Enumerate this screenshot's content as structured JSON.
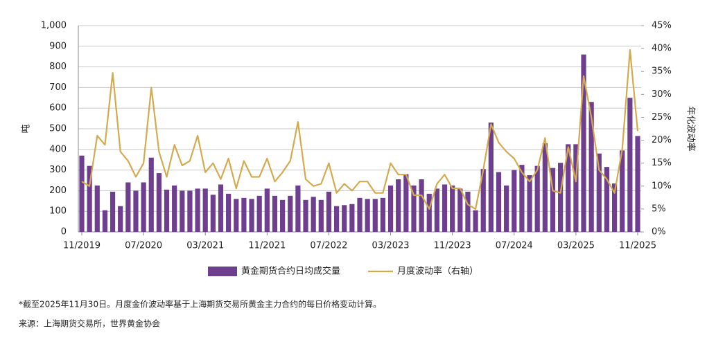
{
  "chart_data": {
    "type": "bar_line",
    "categories": [
      "11/2019",
      null,
      null,
      null,
      null,
      null,
      null,
      null,
      "07/2020",
      null,
      null,
      null,
      null,
      null,
      null,
      null,
      "03/2021",
      null,
      null,
      null,
      null,
      null,
      null,
      null,
      "11/2021",
      null,
      null,
      null,
      null,
      null,
      null,
      null,
      "07/2022",
      null,
      null,
      null,
      null,
      null,
      null,
      null,
      "03/2023",
      null,
      null,
      null,
      null,
      null,
      null,
      null,
      "11/2023",
      null,
      null,
      null,
      null,
      null,
      null,
      null,
      "07/2024",
      null,
      null,
      null,
      null,
      null,
      null,
      null,
      "03/2025",
      null,
      null,
      null,
      null,
      null,
      null,
      null,
      "11/2025"
    ],
    "series": [
      {
        "name": "黄金期货合约日均成交量",
        "type": "bar",
        "color": "#6e3f8e",
        "values": [
          370,
          320,
          225,
          105,
          195,
          125,
          240,
          200,
          240,
          360,
          285,
          205,
          225,
          200,
          200,
          210,
          210,
          180,
          230,
          185,
          160,
          165,
          160,
          175,
          210,
          175,
          155,
          175,
          225,
          155,
          170,
          155,
          195,
          125,
          130,
          135,
          165,
          160,
          160,
          165,
          225,
          255,
          280,
          225,
          255,
          185,
          210,
          230,
          225,
          210,
          195,
          105,
          305,
          530,
          290,
          225,
          300,
          325,
          275,
          320,
          430,
          310,
          335,
          425,
          425,
          860,
          630,
          380,
          315,
          235,
          395,
          650,
          465
        ]
      },
      {
        "name": "月度波动率（右轴）",
        "type": "line",
        "axis": "y2",
        "color": "#d4aa4f",
        "values": [
          11,
          10,
          21,
          19,
          34.7,
          17.5,
          15.5,
          12,
          15,
          31.5,
          17.5,
          12,
          19,
          14.5,
          15.5,
          21,
          13,
          15,
          11.5,
          16,
          9.5,
          15.5,
          12,
          12,
          16,
          11,
          13,
          15.5,
          24,
          11.5,
          10,
          10.5,
          15,
          8.5,
          10.5,
          9,
          11,
          11,
          8.5,
          8.5,
          15,
          12.5,
          12.5,
          8,
          8,
          5,
          10.5,
          12.5,
          9.5,
          9.5,
          6,
          5,
          13.5,
          23.5,
          19.5,
          17.5,
          16,
          13,
          11,
          13.5,
          20.5,
          9,
          8.5,
          18.5,
          11,
          34,
          25,
          13.5,
          11.5,
          8.5,
          18,
          39.7,
          22
        ]
      }
    ],
    "y_label": "吨",
    "y2_label": "年化波动率",
    "ylim": [
      0,
      1000
    ],
    "yticks": [
      0,
      100,
      200,
      300,
      400,
      500,
      600,
      700,
      800,
      900,
      {
        "value": 1000,
        "label": "1,000"
      }
    ],
    "y2lim": [
      0,
      45
    ],
    "y2ticks": [
      {
        "value": 0,
        "label": "0%"
      },
      {
        "value": 5,
        "label": "5%"
      },
      {
        "value": 10,
        "label": "10%"
      },
      {
        "value": 15,
        "label": "15%"
      },
      {
        "value": 20,
        "label": "20%"
      },
      {
        "value": 25,
        "label": "25%"
      },
      {
        "value": 30,
        "label": "30%"
      },
      {
        "value": 35,
        "label": "35%"
      },
      {
        "value": 40,
        "label": "40%"
      },
      {
        "value": 45,
        "label": "45%"
      }
    ],
    "grid": true,
    "footnote": "*截至2025年11月30日。月度金价波动率基于上海期货交易所黄金主力合约的每日价格变动计算。",
    "source": "来源：上海期货交易所，世界黄金协会"
  }
}
